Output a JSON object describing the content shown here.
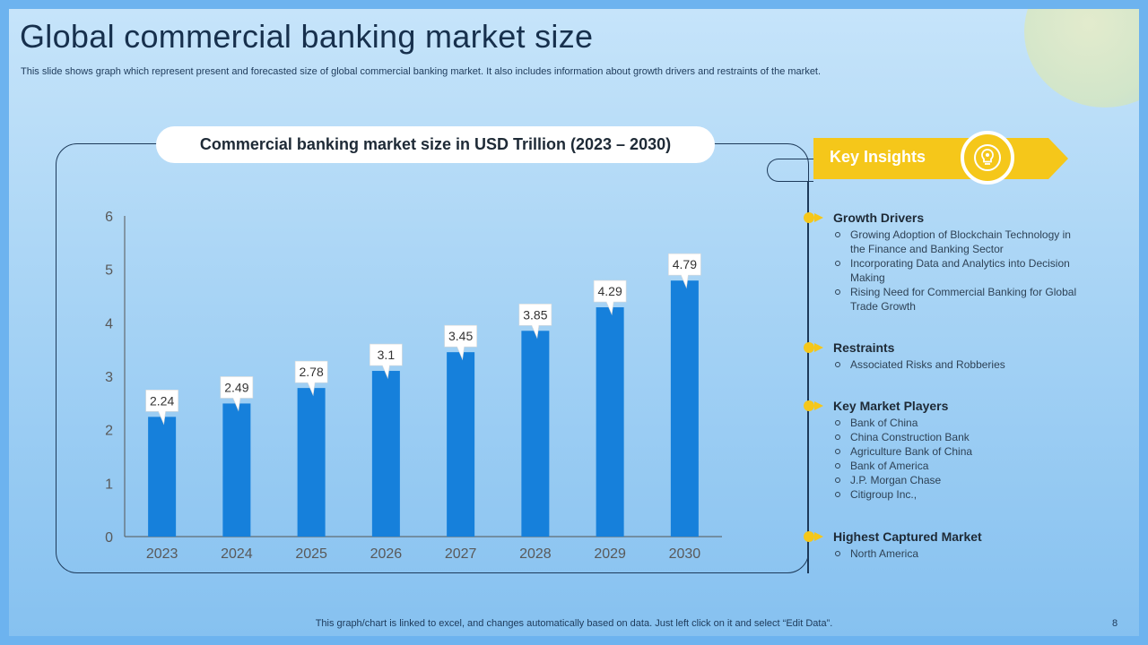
{
  "title": "Global commercial banking market size",
  "subtitle": "This slide shows graph which represent present and forecasted size of global commercial banking market. It also includes information about growth drivers and restraints of the market.",
  "chart_data": {
    "type": "bar",
    "title": "Commercial banking market size in USD Trillion (2023 – 2030)",
    "categories": [
      "2023",
      "2024",
      "2025",
      "2026",
      "2027",
      "2028",
      "2029",
      "2030"
    ],
    "values": [
      2.24,
      2.49,
      2.78,
      3.1,
      3.45,
      3.85,
      4.29,
      4.79
    ],
    "value_labels": [
      "2.24",
      "2.49",
      "2.78",
      "3.1",
      "3.45",
      "3.85",
      "4.29",
      "4.79"
    ],
    "ylim": [
      0,
      6
    ],
    "yticks": [
      "0",
      "1",
      "2",
      "3",
      "4",
      "5",
      "6"
    ],
    "xlabel": "",
    "ylabel": "",
    "grid": false,
    "bar_color": "#1680db"
  },
  "insights": {
    "label": "Key Insights",
    "icon": "lightbulb-gear-icon",
    "accent_color": "#f5c71a",
    "sections": [
      {
        "heading": "Growth Drivers",
        "items": [
          "Growing Adoption of Blockchain Technology in the Finance and Banking Sector",
          "Incorporating Data and Analytics into Decision Making",
          "Rising Need for Commercial Banking for Global Trade Growth"
        ]
      },
      {
        "heading": "Restraints",
        "items": [
          "Associated Risks and Robberies"
        ]
      },
      {
        "heading": "Key Market Players",
        "items": [
          "Bank of China",
          "China Construction Bank",
          "Agriculture Bank of China",
          "Bank of America",
          "J.P. Morgan Chase",
          "Citigroup Inc.,"
        ]
      },
      {
        "heading": "Highest Captured Market",
        "items": [
          "North America"
        ]
      }
    ]
  },
  "footer": "This graph/chart is linked to excel,  and changes automatically based on data. Just left click on it and select “Edit Data”.",
  "page_number": "8"
}
